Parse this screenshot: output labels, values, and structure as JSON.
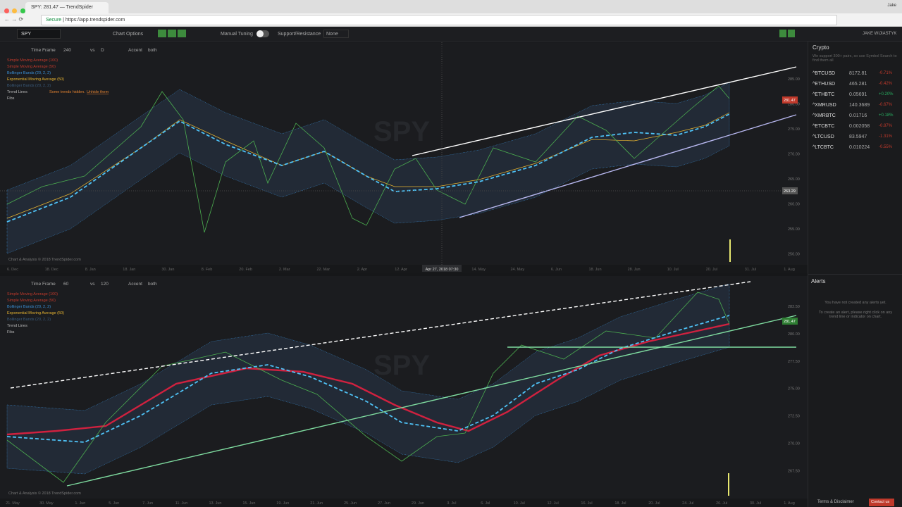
{
  "browser": {
    "tab_title": "SPY: 281.47 — TrendSpider",
    "secure": "Secure",
    "url": "https://app.trendspider.com",
    "user": "Jake"
  },
  "toolbar": {
    "symbol": "SPY",
    "chart_options": "Chart Options",
    "manual_tuning": "Manual Tuning",
    "support_resistance": "Support/Resistance",
    "sr_value": "None",
    "account": "JAKE WIJIASTYK"
  },
  "top_chart": {
    "time_frame_label": "Time Frame",
    "time_frame": "240",
    "vs_label": "vs",
    "vs": "D",
    "accent_label": "Accent",
    "accent": "both",
    "legend": [
      "Simple Moving Average (100)",
      "Simple Moving Average (50)",
      "Bollinger Bands (20, 2, 2)",
      "Exponential Moving Average (50)",
      "Bollinger Bands (20, 2, 2)",
      "Trend Lines",
      "Fibs"
    ],
    "hidden_note": "Some trends hidden.",
    "unhide": "Unhide them",
    "watermark": "SPY",
    "price_ticks": [
      "285.00",
      "280.00",
      "275.00",
      "270.00",
      "265.00",
      "260.00",
      "255.00",
      "250.00"
    ],
    "last_price": "281.47",
    "cursor_price": "263.29",
    "dates": [
      "6. Dec",
      "18. Dec",
      "8. Jan",
      "18. Jan",
      "30. Jan",
      "8. Feb",
      "20. Feb",
      "2. Mar",
      "22. Mar",
      "2. Apr",
      "12. Apr",
      "Apr 27, 2018 07:30",
      "14. May",
      "24. May",
      "6. Jun",
      "18. Jun",
      "28. Jun",
      "10. Jul",
      "20. Jul",
      "31. Jul",
      "1. Aug"
    ],
    "footer": "Chart & Analysis © 2018 TrendSpider.com"
  },
  "bottom_chart": {
    "time_frame_label": "Time Frame",
    "time_frame": "60",
    "vs_label": "vs",
    "vs": "120",
    "accent_label": "Accent",
    "accent": "both",
    "legend": [
      "Simple Moving Average (100)",
      "Simple Moving Average (50)",
      "Bollinger Bands (20, 2, 2)",
      "Exponential Moving Average (50)",
      "Bollinger Bands (20, 2, 2)",
      "Trend Lines",
      "Fibs"
    ],
    "watermark": "SPY",
    "price_ticks": [
      "282.50",
      "280.00",
      "277.50",
      "275.00",
      "272.50",
      "270.00",
      "267.50"
    ],
    "last_price": "281.47",
    "dates": [
      "21. May",
      "30. May",
      "1. Jun",
      "5. Jun",
      "7. Jun",
      "11. Jun",
      "13. Jun",
      "15. Jun",
      "19. Jun",
      "21. Jun",
      "25. Jun",
      "27. Jun",
      "29. Jun",
      "3. Jul",
      "6. Jul",
      "10. Jul",
      "12. Jul",
      "16. Jul",
      "18. Jul",
      "20. Jul",
      "24. Jul",
      "26. Jul",
      "30. Jul",
      "1. Aug"
    ],
    "footer": "Chart & Analysis © 2018 TrendSpider.com"
  },
  "sidebar": {
    "watchlist": "Crypto",
    "note": "We support 300+ pairs, so use Symbol Search to find them all",
    "rows": [
      [
        "^BTCUSD",
        "8172.81",
        "-0.71%"
      ],
      [
        "^ETHUSD",
        "465.281",
        "-0.42%"
      ],
      [
        "^ETHBTC",
        "0.05691",
        "+0.20%"
      ],
      [
        "^XMRUSD",
        "140.3689",
        "-0.67%"
      ],
      [
        "^XMRBTC",
        "0.01716",
        "+0.18%"
      ],
      [
        "^ETCBTC",
        "0.002058",
        "-0.87%"
      ],
      [
        "^LTCUSD",
        "83.5947",
        "-1.31%"
      ],
      [
        "^LTCBTC",
        "0.010224",
        "-0.55%"
      ]
    ],
    "alerts": "Alerts",
    "alerts_empty": "You have not created any alerts yet.",
    "alerts_help": "To create an alert, please right click on any trend line or indicator on chart.",
    "terms": "Terms & Disclaimer",
    "contact": "Contact us"
  }
}
